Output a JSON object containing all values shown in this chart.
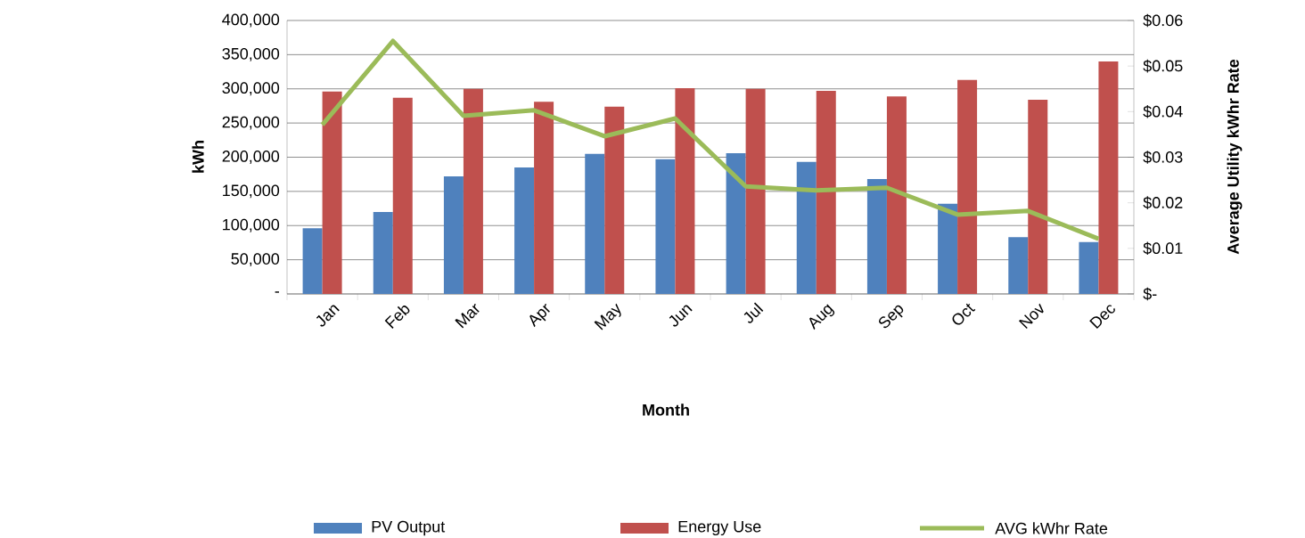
{
  "chart_data": {
    "type": "bar",
    "xlabel": "Month",
    "ylabel": "kWh",
    "y2label": "Average Utility kWhr Rate",
    "categories": [
      "Jan",
      "Feb",
      "Mar",
      "Apr",
      "May",
      "Jun",
      "Jul",
      "Aug",
      "Sep",
      "Oct",
      "Nov",
      "Dec"
    ],
    "series": [
      {
        "name": "PV Output",
        "color": "#4f81bd",
        "values": [
          96000,
          120000,
          172000,
          185000,
          205000,
          197000,
          206000,
          193000,
          168000,
          132000,
          83000,
          76000
        ]
      },
      {
        "name": "Energy Use",
        "color": "#c0504d",
        "values": [
          296000,
          287000,
          300000,
          281000,
          274000,
          301000,
          300000,
          297000,
          289000,
          313000,
          284000,
          340000
        ]
      },
      {
        "name": "AVG kWhr Rate",
        "type": "line",
        "axis": "y2",
        "color": "#9bbb59",
        "values": [
          0.0371,
          0.0555,
          0.0391,
          0.0403,
          0.0346,
          0.0385,
          0.0236,
          0.0227,
          0.0233,
          0.0174,
          0.0182,
          0.0121
        ]
      }
    ],
    "ylim": [
      0,
      400000
    ],
    "yticks": [
      {
        "value": 0,
        "label": "-"
      },
      {
        "value": 50000,
        "label": "50,000"
      },
      {
        "value": 100000,
        "label": "100,000"
      },
      {
        "value": 150000,
        "label": "150,000"
      },
      {
        "value": 200000,
        "label": "200,000"
      },
      {
        "value": 250000,
        "label": "250,000"
      },
      {
        "value": 300000,
        "label": "300,000"
      },
      {
        "value": 350000,
        "label": "350,000"
      },
      {
        "value": 400000,
        "label": "400,000"
      }
    ],
    "y2lim": [
      0,
      0.06
    ],
    "y2ticks": [
      {
        "value": 0,
        "label": "$-"
      },
      {
        "value": 0.01,
        "label": "$0.01"
      },
      {
        "value": 0.02,
        "label": "$0.02"
      },
      {
        "value": 0.03,
        "label": "$0.03"
      },
      {
        "value": 0.04,
        "label": "$0.04"
      },
      {
        "value": 0.05,
        "label": "$0.05"
      },
      {
        "value": 0.06,
        "label": "$0.06"
      }
    ],
    "grid": "y",
    "legend": "bottom",
    "marker": "none",
    "line_style": "solid"
  }
}
